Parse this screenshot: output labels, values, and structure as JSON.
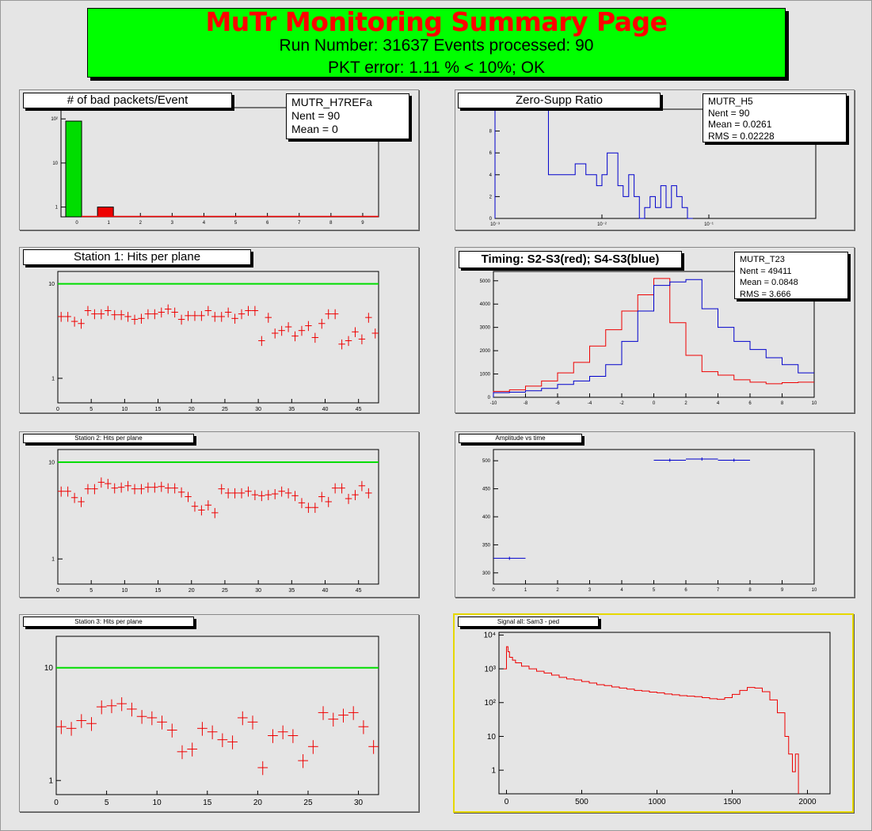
{
  "header": {
    "title": "MuTr Monitoring Summary Page",
    "run_line": "Run Number: 31637   Events processed: 90",
    "pkt_line": "PKT error: 1.11 % < 10%; OK"
  },
  "colors": {
    "green": "#00dd00",
    "red": "#ee0000",
    "blue": "#0000cc",
    "frame": "#e5e5e5",
    "selected": "#e6d800"
  },
  "chart_data": [
    {
      "id": "bad-packets",
      "type": "bar",
      "title": "# of bad packets/Event",
      "logy": true,
      "xlim": [
        -0.5,
        9.5
      ],
      "ylim": [
        0.6,
        180
      ],
      "x_ticks": [
        0,
        1,
        2,
        3,
        4,
        5,
        6,
        7,
        8,
        9
      ],
      "y_ticks": [
        {
          "v": 1,
          "label": "1"
        },
        {
          "v": 10,
          "label": "10"
        },
        {
          "v": 100,
          "label": "10²"
        }
      ],
      "bars": [
        {
          "x0": -0.35,
          "x1": 0.15,
          "value": 89,
          "color": "#00dd00"
        },
        {
          "x0": 0.65,
          "x1": 1.15,
          "value": 1,
          "color": "#ee0000"
        }
      ],
      "stats": {
        "name": "MUTR_H7REFa",
        "lines": [
          "Nent = 90",
          "Mean  =      0"
        ]
      }
    },
    {
      "id": "zero-supp",
      "type": "line",
      "title": "Zero-Supp Ratio",
      "logx": true,
      "xlim": [
        0.001,
        1
      ],
      "ylim": [
        0,
        10
      ],
      "x_ticks": [
        {
          "v": 0.001,
          "label": "10⁻³"
        },
        {
          "v": 0.01,
          "label": "10⁻²"
        },
        {
          "v": 0.1,
          "label": "10⁻¹"
        }
      ],
      "y_ticks": [
        0,
        2,
        4,
        6,
        8,
        10
      ],
      "edges": [
        0.001,
        0.00316,
        0.00562,
        0.00708,
        0.00891,
        0.01,
        0.0112,
        0.0141,
        0.0158,
        0.0178,
        0.02,
        0.0224,
        0.0251,
        0.0282,
        0.0316,
        0.0355,
        0.0398,
        0.0447,
        0.05,
        0.0562,
        0.0631,
        0.0708
      ],
      "values": [
        10,
        4,
        5,
        4,
        3,
        4,
        6,
        3,
        2,
        4,
        2,
        0,
        1,
        2,
        1,
        3,
        1,
        3,
        2,
        1,
        0
      ],
      "color": "#0000cc",
      "stats": {
        "name": "MUTR_H5",
        "lines": [
          "Nent = 90",
          "Mean  = 0.0261",
          "RMS   = 0.02228"
        ]
      }
    },
    {
      "id": "station1",
      "type": "scatter",
      "title": "Station 1: Hits per plane",
      "logy": true,
      "xlim": [
        0,
        48
      ],
      "ylim": [
        0.55,
        13.5
      ],
      "x_ticks": [
        0,
        5,
        10,
        15,
        20,
        25,
        30,
        35,
        40,
        45
      ],
      "y_ticks": [
        {
          "v": 1,
          "label": "1"
        },
        {
          "v": 10,
          "label": "10"
        }
      ],
      "hline": 10,
      "values": [
        4.5,
        4.5,
        4.0,
        3.8,
        5.2,
        4.8,
        4.8,
        5.2,
        4.7,
        4.7,
        4.5,
        4.2,
        4.3,
        4.8,
        4.8,
        5.0,
        5.4,
        5.0,
        4.2,
        4.6,
        4.6,
        4.6,
        5.2,
        4.5,
        4.5,
        5.0,
        4.3,
        4.8,
        5.2,
        5.2,
        2.5,
        4.4,
        3.0,
        3.2,
        3.5,
        2.8,
        3.2,
        3.6,
        2.7,
        3.8,
        4.8,
        4.8,
        2.3,
        2.5,
        3.1,
        2.6,
        4.4,
        3.0
      ],
      "yerr": 0.12
    },
    {
      "id": "timing",
      "type": "line",
      "title": "Timing: S2-S3(red); S4-S3(blue)",
      "xlim": [
        -10,
        10
      ],
      "ylim": [
        0,
        5400
      ],
      "x_ticks": [
        -10,
        -8,
        -6,
        -4,
        -2,
        0,
        2,
        4,
        6,
        8,
        10
      ],
      "y_ticks": [
        0,
        1000,
        2000,
        3000,
        4000,
        5000
      ],
      "edges": [
        -10,
        -9,
        -8,
        -7,
        -6,
        -5,
        -4,
        -3,
        -2,
        -1,
        0,
        1,
        2,
        3,
        4,
        5,
        6,
        7,
        8,
        9,
        10
      ],
      "series": [
        {
          "name": "S2-S3",
          "color": "#ee0000",
          "values": [
            250,
            320,
            480,
            700,
            1050,
            1500,
            2200,
            2900,
            3700,
            4400,
            5100,
            3200,
            1800,
            1100,
            950,
            750,
            650,
            580,
            630,
            650
          ]
        },
        {
          "name": "S4-S3",
          "color": "#0000cc",
          "values": [
            200,
            220,
            280,
            380,
            550,
            700,
            900,
            1400,
            2400,
            3700,
            4800,
            4950,
            5050,
            3800,
            3000,
            2400,
            2050,
            1700,
            1400,
            1050
          ]
        }
      ],
      "stats": {
        "name": "MUTR_T23",
        "lines": [
          "Nent = 49411",
          "Mean  = 0.0848",
          "RMS   =  3.666"
        ]
      }
    },
    {
      "id": "station2",
      "type": "scatter",
      "title": "Station 2: Hits per plane",
      "logy": true,
      "xlim": [
        0,
        48
      ],
      "ylim": [
        0.55,
        13.5
      ],
      "x_ticks": [
        0,
        5,
        10,
        15,
        20,
        25,
        30,
        35,
        40,
        45
      ],
      "y_ticks": [
        {
          "v": 1,
          "label": "1"
        },
        {
          "v": 10,
          "label": "10"
        }
      ],
      "hline": 10,
      "values": [
        5.0,
        5.0,
        4.3,
        3.9,
        5.3,
        5.3,
        6.2,
        6.0,
        5.4,
        5.5,
        5.7,
        5.3,
        5.3,
        5.5,
        5.5,
        5.6,
        5.4,
        5.4,
        4.9,
        4.4,
        3.5,
        3.2,
        3.6,
        3.0,
        5.3,
        4.8,
        4.8,
        4.8,
        5.0,
        4.6,
        4.5,
        4.6,
        4.7,
        5.0,
        4.8,
        4.5,
        3.8,
        3.4,
        3.4,
        4.4,
        3.9,
        5.4,
        5.4,
        4.2,
        4.6,
        5.7,
        4.8
      ],
      "yerr": 0.12
    },
    {
      "id": "amplitude",
      "type": "scatter",
      "title": "Amplitude vs time",
      "xlim": [
        0,
        10
      ],
      "ylim": [
        280,
        520
      ],
      "x_ticks": [
        0,
        1,
        2,
        3,
        4,
        5,
        6,
        7,
        8,
        9,
        10
      ],
      "y_ticks": [
        300,
        350,
        400,
        450,
        500
      ],
      "points": [
        {
          "x0": 0,
          "x1": 1,
          "y": 326
        },
        {
          "x0": 5,
          "x1": 6,
          "y": 501
        },
        {
          "x0": 6,
          "x1": 7,
          "y": 503
        },
        {
          "x0": 7,
          "x1": 8,
          "y": 501
        }
      ],
      "color": "#0000cc"
    },
    {
      "id": "station3",
      "type": "scatter",
      "title": "Station 3: Hits per plane",
      "logy": true,
      "xlim": [
        0,
        32
      ],
      "ylim": [
        0.75,
        19
      ],
      "x_ticks": [
        0,
        5,
        10,
        15,
        20,
        25,
        30
      ],
      "y_ticks": [
        {
          "v": 1,
          "label": "1"
        },
        {
          "v": 10,
          "label": "10"
        }
      ],
      "hline": 10,
      "values": [
        3.0,
        2.9,
        3.4,
        3.2,
        4.5,
        4.6,
        4.8,
        4.3,
        3.7,
        3.6,
        3.3,
        2.8,
        1.8,
        1.9,
        2.9,
        2.7,
        2.3,
        2.2,
        3.6,
        3.3,
        1.3,
        2.5,
        2.7,
        2.5,
        1.5,
        2.0,
        4.0,
        3.5,
        3.8,
        4.0,
        3.0,
        2.0
      ],
      "yerr": 0.14
    },
    {
      "id": "signal",
      "type": "line",
      "title": "Signal all: Sam3 - ped",
      "logy": true,
      "xlim": [
        -50,
        2150
      ],
      "ylim": [
        0.2,
        12000
      ],
      "x_ticks": [
        {
          "v": 0,
          "label": "0"
        },
        {
          "v": 500,
          "label": "500"
        },
        {
          "v": 1000,
          "label": "1000"
        },
        {
          "v": 1500,
          "label": "1500"
        },
        {
          "v": 2000,
          "label": "2000"
        }
      ],
      "y_ticks": [
        {
          "v": 1,
          "label": "1"
        },
        {
          "v": 10,
          "label": "10"
        },
        {
          "v": 100,
          "label": "10²"
        },
        {
          "v": 1000,
          "label": "10³"
        },
        {
          "v": 10000,
          "label": "10⁴"
        }
      ],
      "color": "#ee0000",
      "curve": [
        [
          -20,
          1000
        ],
        [
          0,
          4500
        ],
        [
          10,
          3200
        ],
        [
          20,
          2200
        ],
        [
          40,
          1800
        ],
        [
          60,
          1500
        ],
        [
          100,
          1200
        ],
        [
          150,
          1000
        ],
        [
          200,
          850
        ],
        [
          250,
          750
        ],
        [
          300,
          650
        ],
        [
          350,
          560
        ],
        [
          400,
          500
        ],
        [
          450,
          470
        ],
        [
          500,
          420
        ],
        [
          550,
          380
        ],
        [
          600,
          340
        ],
        [
          650,
          320
        ],
        [
          700,
          290
        ],
        [
          750,
          270
        ],
        [
          800,
          250
        ],
        [
          850,
          230
        ],
        [
          900,
          220
        ],
        [
          950,
          205
        ],
        [
          1000,
          195
        ],
        [
          1050,
          180
        ],
        [
          1100,
          170
        ],
        [
          1150,
          160
        ],
        [
          1200,
          155
        ],
        [
          1250,
          150
        ],
        [
          1300,
          140
        ],
        [
          1350,
          130
        ],
        [
          1400,
          125
        ],
        [
          1450,
          140
        ],
        [
          1500,
          175
        ],
        [
          1550,
          230
        ],
        [
          1600,
          280
        ],
        [
          1650,
          270
        ],
        [
          1700,
          210
        ],
        [
          1750,
          120
        ],
        [
          1800,
          50
        ],
        [
          1850,
          10
        ],
        [
          1875,
          3
        ],
        [
          1900,
          0.9
        ],
        [
          1920,
          3
        ],
        [
          1940,
          0.2
        ]
      ]
    }
  ]
}
